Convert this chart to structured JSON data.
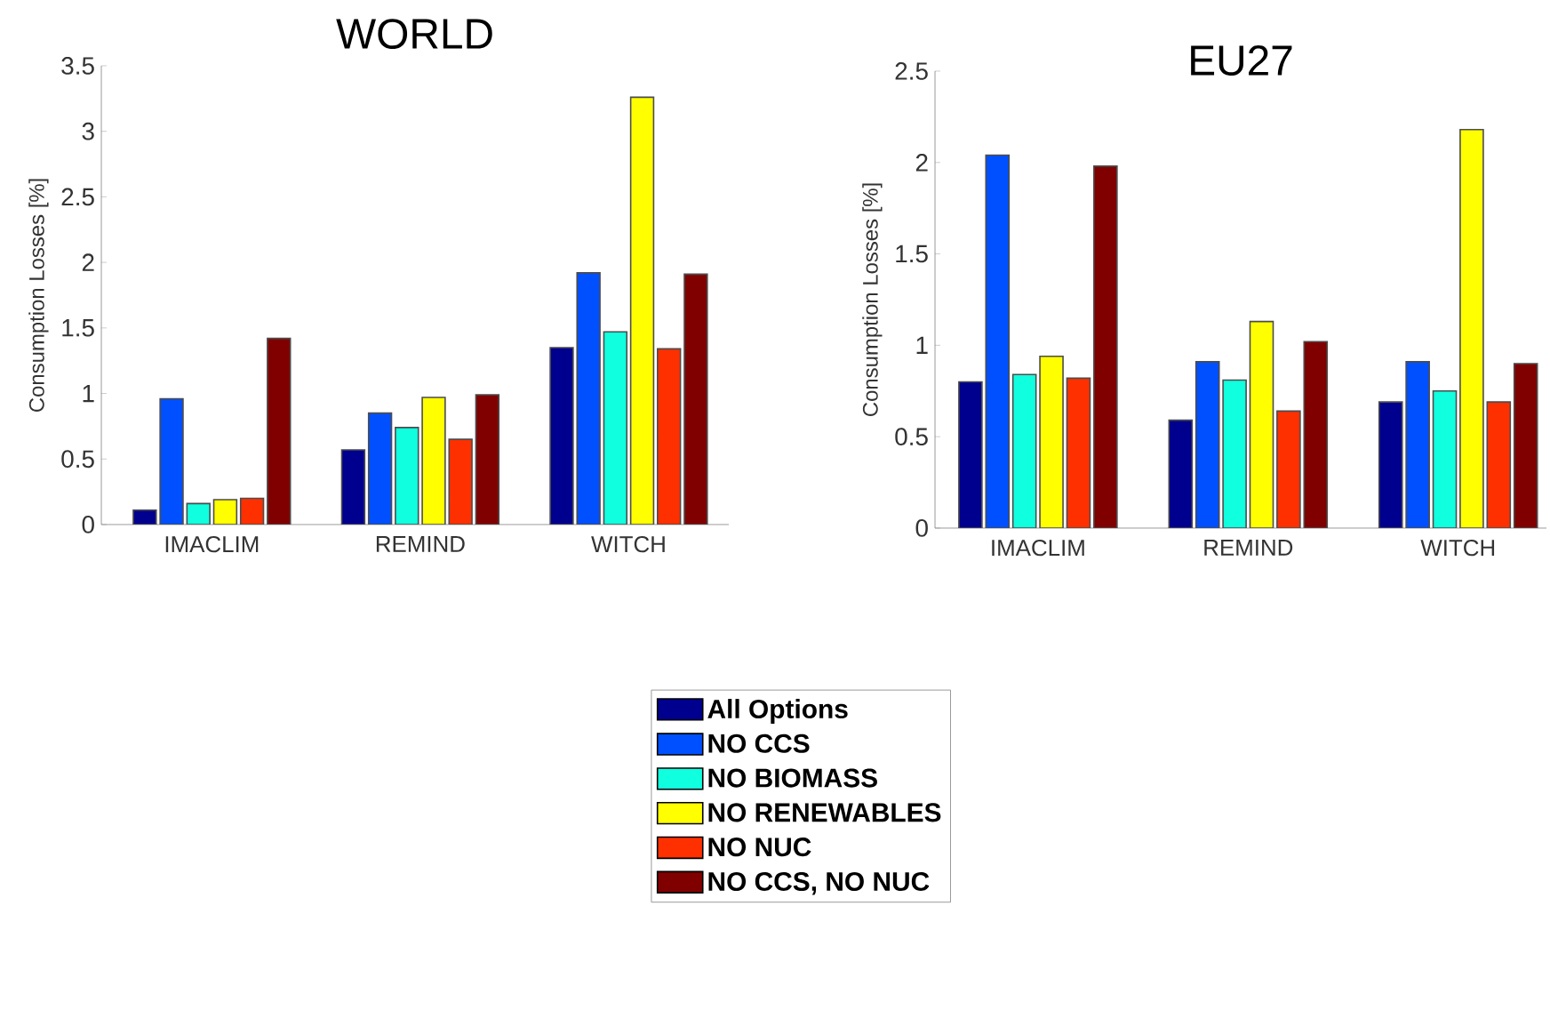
{
  "chart_data": [
    {
      "type": "bar",
      "title": "WORLD",
      "ylabel": "Consumption Losses [%]",
      "categories": [
        "IMACLIM",
        "REMIND",
        "WITCH"
      ],
      "ylim": [
        0,
        3.5
      ],
      "yticks": [
        0,
        0.5,
        1,
        1.5,
        2,
        2.5,
        3,
        3.5
      ],
      "legend": "bottom",
      "series": [
        {
          "name": "All Options",
          "color": "#00008f",
          "values": [
            0.11,
            0.57,
            1.35
          ]
        },
        {
          "name": "NO CCS",
          "color": "#0050ff",
          "values": [
            0.96,
            0.85,
            1.92
          ]
        },
        {
          "name": "NO BIOMASS",
          "color": "#10ffdf",
          "values": [
            0.16,
            0.74,
            1.47
          ]
        },
        {
          "name": "NO RENEWABLES",
          "color": "#ffff00",
          "values": [
            0.19,
            0.97,
            3.26
          ]
        },
        {
          "name": "NO NUC",
          "color": "#ff3000",
          "values": [
            0.2,
            0.65,
            1.34
          ]
        },
        {
          "name": "NO CCS, NO NUC",
          "color": "#800000",
          "values": [
            1.42,
            0.99,
            1.91
          ]
        }
      ]
    },
    {
      "type": "bar",
      "title": "EU27",
      "ylabel": "Consumption Losses [%]",
      "categories": [
        "IMACLIM",
        "REMIND",
        "WITCH"
      ],
      "ylim": [
        0,
        2.5
      ],
      "yticks": [
        0,
        0.5,
        1,
        1.5,
        2,
        2.5
      ],
      "series": [
        {
          "color": "#00008f",
          "values": [
            0.8,
            0.59,
            0.69
          ]
        },
        {
          "color": "#0050ff",
          "values": [
            2.04,
            0.91,
            0.91
          ]
        },
        {
          "color": "#10ffdf",
          "values": [
            0.84,
            0.81,
            0.75
          ]
        },
        {
          "color": "#ffff00",
          "values": [
            0.94,
            1.13,
            2.18
          ]
        },
        {
          "color": "#ff3000",
          "values": [
            0.82,
            0.64,
            0.69
          ]
        },
        {
          "color": "#800000",
          "values": [
            1.98,
            1.02,
            0.9
          ]
        }
      ]
    }
  ]
}
